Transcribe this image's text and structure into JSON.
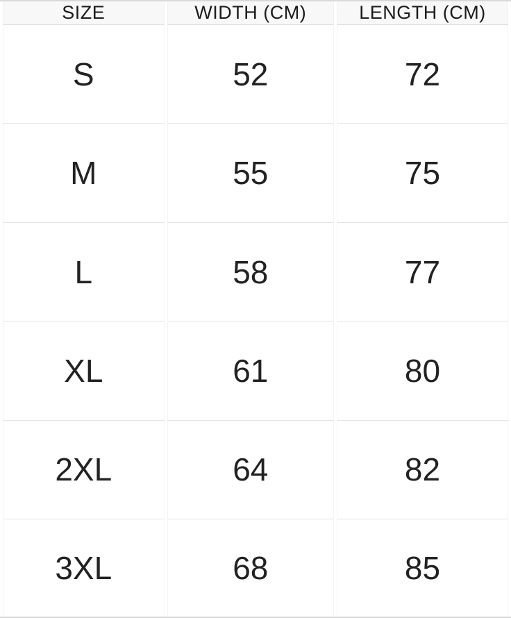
{
  "chart_data": {
    "type": "table",
    "columns": [
      "SIZE",
      "WIDTH (CM)",
      "LENGTH (CM)"
    ],
    "rows": [
      {
        "size": "S",
        "width": "52",
        "length": "72"
      },
      {
        "size": "M",
        "width": "55",
        "length": "75"
      },
      {
        "size": "L",
        "width": "58",
        "length": "77"
      },
      {
        "size": "XL",
        "width": "61",
        "length": "80"
      },
      {
        "size": "2XL",
        "width": "64",
        "length": "82"
      },
      {
        "size": "3XL",
        "width": "68",
        "length": "85"
      }
    ]
  },
  "colors": {
    "header_background": "#f8f8f8",
    "row_background": "#ffffff",
    "row_divider": "#e4e4e4",
    "column_divider": "#f4f4f4",
    "outer_border": "#d9d9d9",
    "text": "#222222"
  }
}
